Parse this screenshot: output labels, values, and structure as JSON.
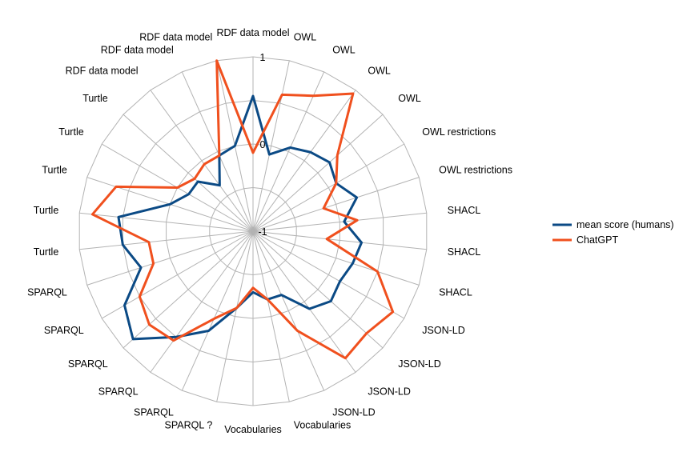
{
  "chart_data": {
    "type": "radar",
    "title": "",
    "categories": [
      "RDF data model",
      "OWL",
      "OWL",
      "OWL",
      "OWL",
      "OWL restrictions",
      "OWL restrictions",
      "SHACL",
      "SHACL",
      "SHACL",
      "JSON-LD",
      "JSON-LD",
      "JSON-LD",
      "JSON-LD",
      "Vocabularies",
      "Vocabularies",
      "SPARQL ?",
      "SPARQL",
      "SPARQL",
      "SPARQL",
      "SPARQL",
      "SPARQL",
      "Turtle",
      "Turtle",
      "Turtle",
      "Turtle",
      "Turtle",
      "RDF data model",
      "RDF data model",
      "RDF data model"
    ],
    "rlim": [
      -1,
      1
    ],
    "ticks": [
      {
        "value": 1,
        "label": "1"
      },
      {
        "value": 0,
        "label": "0"
      },
      {
        "value": -1,
        "label": "-1"
      }
    ],
    "legend_position": "right",
    "series": [
      {
        "name": "mean score (humans)",
        "color": "#0b4a85",
        "values": [
          0.55,
          -0.1,
          0.05,
          0.12,
          0.18,
          0.1,
          0.25,
          0.05,
          0.25,
          0.2,
          0.15,
          0.2,
          0.1,
          -0.2,
          -0.2,
          -0.3,
          -0.1,
          0.25,
          0.5,
          0.85,
          0.7,
          0.35,
          0.5,
          0.55,
          0.0,
          -0.15,
          -0.15,
          -0.35,
          -0.05,
          0.0
        ]
      },
      {
        "name": "ChatGPT",
        "color": "#f0501e",
        "values": [
          -0.1,
          0.6,
          0.7,
          0.95,
          0.3,
          0.1,
          -0.15,
          0.2,
          -0.15,
          0.5,
          0.85,
          0.75,
          0.8,
          0.25,
          -0.2,
          -0.35,
          -0.1,
          0.1,
          0.55,
          0.6,
          0.5,
          0.2,
          0.2,
          0.85,
          0.65,
          0.0,
          -0.1,
          -0.05,
          -0.05,
          1.0
        ]
      }
    ]
  }
}
